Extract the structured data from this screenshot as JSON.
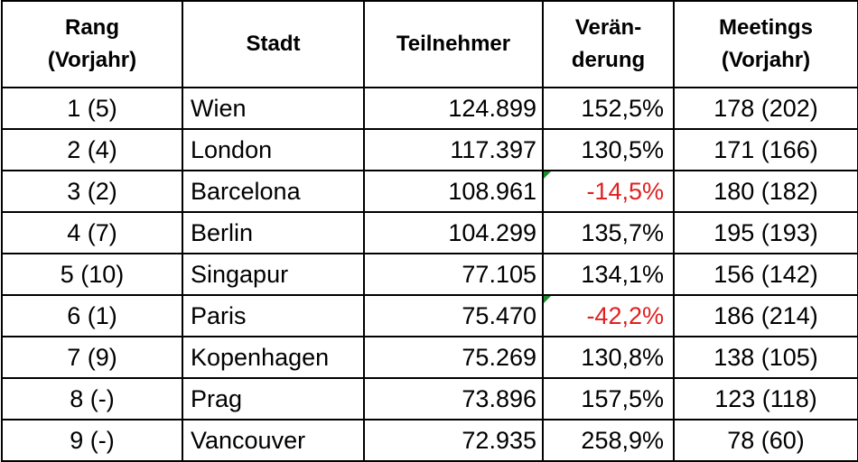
{
  "headers": {
    "rank": [
      "Rang",
      "(Vorjahr)"
    ],
    "city": "Stadt",
    "participants": "Teilnehmer",
    "change": [
      "Verän-",
      "derung"
    ],
    "meetings": [
      "Meetings",
      "(Vorjahr)"
    ]
  },
  "rows": [
    {
      "rank": "1 (5)",
      "city": "Wien",
      "participants": "124.899",
      "change": "152,5%",
      "negative": false,
      "meetings": "178 (202)"
    },
    {
      "rank": "2 (4)",
      "city": "London",
      "participants": "117.397",
      "change": "130,5%",
      "negative": false,
      "meetings": "171 (166)"
    },
    {
      "rank": "3 (2)",
      "city": "Barcelona",
      "participants": "108.961",
      "change": "-14,5%",
      "negative": true,
      "meetings": "180 (182)"
    },
    {
      "rank": "4 (7)",
      "city": "Berlin",
      "participants": "104.299",
      "change": "135,7%",
      "negative": false,
      "meetings": "195 (193)"
    },
    {
      "rank": "5 (10)",
      "city": "Singapur",
      "participants": "77.105",
      "change": "134,1%",
      "negative": false,
      "meetings": "156 (142)"
    },
    {
      "rank": "6 (1)",
      "city": "Paris",
      "participants": "75.470",
      "change": "-42,2%",
      "negative": true,
      "meetings": "186 (214)"
    },
    {
      "rank": "7 (9)",
      "city": "Kopenhagen",
      "participants": "75.269",
      "change": "130,8%",
      "negative": false,
      "meetings": "138 (105)"
    },
    {
      "rank": "8 (-)",
      "city": "Prag",
      "participants": "73.896",
      "change": "157,5%",
      "negative": false,
      "meetings": "123 (118)"
    },
    {
      "rank": "9 (-)",
      "city": "Vancouver",
      "participants": "72.935",
      "change": "258,9%",
      "negative": false,
      "meetings": "78 (60)"
    }
  ],
  "colors": {
    "negative_text": "#e02020",
    "comment_marker": "#1e8c2e",
    "border": "#000000"
  }
}
